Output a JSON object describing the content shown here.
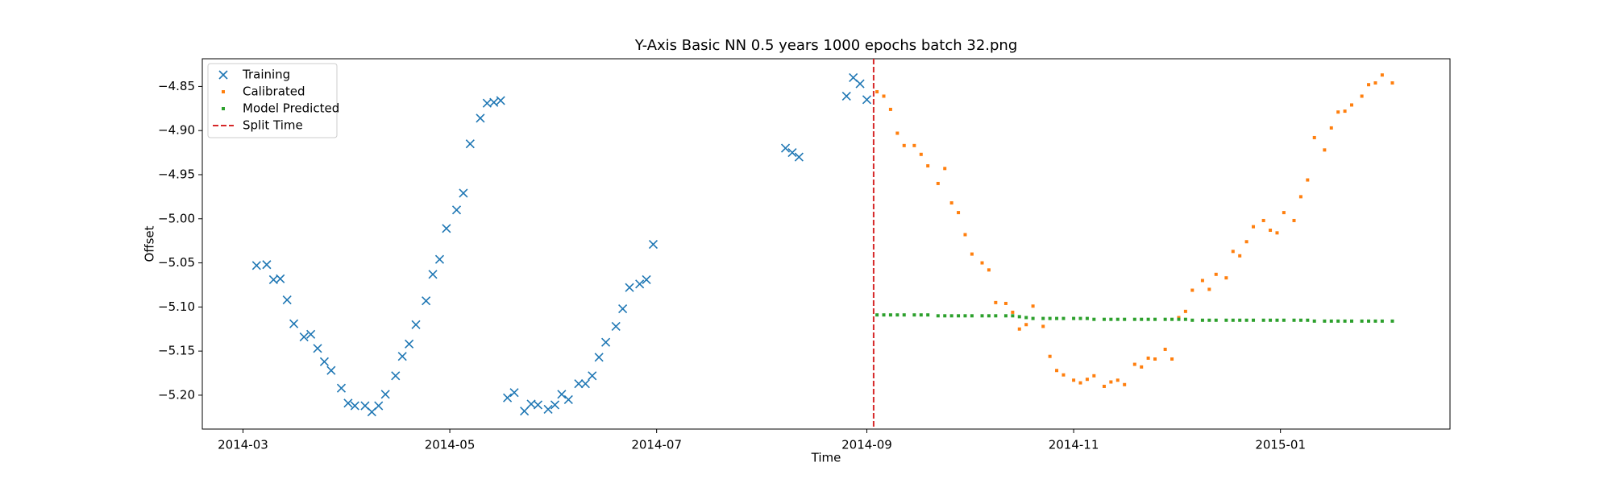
{
  "chart_data": {
    "type": "scatter",
    "title": "Y-Axis Basic NN 0.5 years 1000 epochs batch 32.png",
    "x_label": "Time",
    "y_label": "Offset",
    "xlim": [
      16118,
      16486
    ],
    "ylim": [
      -5.2384,
      -4.8186
    ],
    "xticks": [
      {
        "value": 16130,
        "label": "2014-03"
      },
      {
        "value": 16191,
        "label": "2014-05"
      },
      {
        "value": 16252,
        "label": "2014-07"
      },
      {
        "value": 16314,
        "label": "2014-09"
      },
      {
        "value": 16375,
        "label": "2014-11"
      },
      {
        "value": 16436,
        "label": "2015-01"
      }
    ],
    "yticks": [
      {
        "value": -4.85,
        "label": "−4.85"
      },
      {
        "value": -4.9,
        "label": "−4.90"
      },
      {
        "value": -4.95,
        "label": "−4.95"
      },
      {
        "value": -5.0,
        "label": "−5.00"
      },
      {
        "value": -5.05,
        "label": "−5.05"
      },
      {
        "value": -5.1,
        "label": "−5.10"
      },
      {
        "value": -5.15,
        "label": "−5.15"
      },
      {
        "value": -5.2,
        "label": "−5.20"
      }
    ],
    "legend": "upper left",
    "series": [
      {
        "name": "Training",
        "color": "#1f77b4",
        "marker": "x",
        "x": [
          16134,
          16137,
          16139,
          16141,
          16143,
          16145,
          16148,
          16150,
          16152,
          16154,
          16156,
          16159,
          16161,
          16163,
          16166,
          16168,
          16170,
          16172,
          16175,
          16177,
          16179,
          16181,
          16184,
          16186,
          16188,
          16190,
          16193,
          16195,
          16197,
          16200,
          16202,
          16204,
          16206,
          16208,
          16210,
          16213,
          16215,
          16217,
          16220,
          16222,
          16224,
          16226,
          16229,
          16231,
          16233,
          16235,
          16237,
          16240,
          16242,
          16244,
          16247,
          16249,
          16251,
          16290,
          16292,
          16294,
          16308,
          16310,
          16312,
          16314
        ],
        "values": [
          -5.053,
          -5.052,
          -5.069,
          -5.068,
          -5.092,
          -5.119,
          -5.134,
          -5.131,
          -5.147,
          -5.162,
          -5.172,
          -5.192,
          -5.209,
          -5.212,
          -5.212,
          -5.219,
          -5.212,
          -5.199,
          -5.178,
          -5.156,
          -5.142,
          -5.12,
          -5.093,
          -5.063,
          -5.046,
          -5.011,
          -4.99,
          -4.971,
          -4.915,
          -4.886,
          -4.869,
          -4.868,
          -4.866,
          -5.203,
          -5.197,
          -5.218,
          -5.21,
          -5.211,
          -5.216,
          -5.211,
          -5.199,
          -5.205,
          -5.187,
          -5.187,
          -5.178,
          -5.157,
          -5.14,
          -5.122,
          -5.102,
          -5.078,
          -5.074,
          -5.069,
          -5.029,
          -4.92,
          -4.925,
          -4.93,
          -4.861,
          -4.84,
          -4.847,
          -4.865
        ]
      },
      {
        "name": "Calibrated",
        "color": "#ff7f0e",
        "marker": "square",
        "x": [
          16317,
          16319,
          16321,
          16323,
          16325,
          16328,
          16330,
          16332,
          16335,
          16337,
          16339,
          16341,
          16343,
          16345,
          16348,
          16350,
          16352,
          16355,
          16357,
          16359,
          16361,
          16363,
          16366,
          16368,
          16370,
          16372,
          16375,
          16377,
          16379,
          16381,
          16384,
          16386,
          16388,
          16390,
          16393,
          16395,
          16397,
          16399,
          16402,
          16404,
          16406,
          16408,
          16410,
          16413,
          16415,
          16417,
          16420,
          16422,
          16424,
          16426,
          16428,
          16431,
          16433,
          16435,
          16437,
          16440,
          16442,
          16444,
          16446,
          16449,
          16451,
          16453,
          16455,
          16457,
          16460,
          16462,
          16464,
          16466,
          16469
        ],
        "values": [
          -4.856,
          -4.861,
          -4.876,
          -4.903,
          -4.917,
          -4.917,
          -4.927,
          -4.94,
          -4.96,
          -4.943,
          -4.982,
          -4.993,
          -5.018,
          -5.04,
          -5.05,
          -5.058,
          -5.095,
          -5.096,
          -5.106,
          -5.125,
          -5.12,
          -5.099,
          -5.122,
          -5.156,
          -5.172,
          -5.177,
          -5.183,
          -5.186,
          -5.182,
          -5.178,
          -5.19,
          -5.185,
          -5.183,
          -5.188,
          -5.165,
          -5.168,
          -5.158,
          -5.159,
          -5.148,
          -5.159,
          -5.112,
          -5.105,
          -5.081,
          -5.07,
          -5.08,
          -5.063,
          -5.067,
          -5.037,
          -5.042,
          -5.026,
          -5.009,
          -5.002,
          -5.013,
          -5.016,
          -4.993,
          -5.002,
          -4.975,
          -4.956,
          -4.908,
          -4.922,
          -4.897,
          -4.879,
          -4.878,
          -4.871,
          -4.861,
          -4.848,
          -4.846,
          -4.837,
          -4.846
        ]
      },
      {
        "name": "Model Predicted",
        "color": "#2ca02c",
        "marker": "square",
        "x": [
          16317,
          16319,
          16321,
          16323,
          16325,
          16328,
          16330,
          16332,
          16335,
          16337,
          16339,
          16341,
          16343,
          16345,
          16348,
          16350,
          16352,
          16355,
          16357,
          16359,
          16361,
          16363,
          16366,
          16368,
          16370,
          16372,
          16375,
          16377,
          16379,
          16381,
          16384,
          16386,
          16388,
          16390,
          16393,
          16395,
          16397,
          16399,
          16402,
          16404,
          16406,
          16408,
          16410,
          16413,
          16415,
          16417,
          16420,
          16422,
          16424,
          16426,
          16428,
          16431,
          16433,
          16435,
          16437,
          16440,
          16442,
          16444,
          16446,
          16449,
          16451,
          16453,
          16455,
          16457,
          16460,
          16462,
          16464,
          16466,
          16469
        ],
        "values": [
          -5.109,
          -5.109,
          -5.109,
          -5.109,
          -5.109,
          -5.109,
          -5.109,
          -5.109,
          -5.11,
          -5.11,
          -5.11,
          -5.11,
          -5.11,
          -5.11,
          -5.11,
          -5.11,
          -5.11,
          -5.11,
          -5.11,
          -5.111,
          -5.112,
          -5.113,
          -5.113,
          -5.113,
          -5.113,
          -5.113,
          -5.113,
          -5.113,
          -5.113,
          -5.114,
          -5.114,
          -5.114,
          -5.114,
          -5.114,
          -5.114,
          -5.114,
          -5.114,
          -5.114,
          -5.114,
          -5.114,
          -5.114,
          -5.114,
          -5.115,
          -5.115,
          -5.115,
          -5.115,
          -5.115,
          -5.115,
          -5.115,
          -5.115,
          -5.115,
          -5.115,
          -5.115,
          -5.115,
          -5.115,
          -5.115,
          -5.115,
          -5.115,
          -5.116,
          -5.116,
          -5.116,
          -5.116,
          -5.116,
          -5.116,
          -5.116,
          -5.116,
          -5.116,
          -5.116,
          -5.116
        ]
      }
    ],
    "split_line": {
      "name": "Split Time",
      "x": 16316,
      "color": "#d62728"
    }
  }
}
